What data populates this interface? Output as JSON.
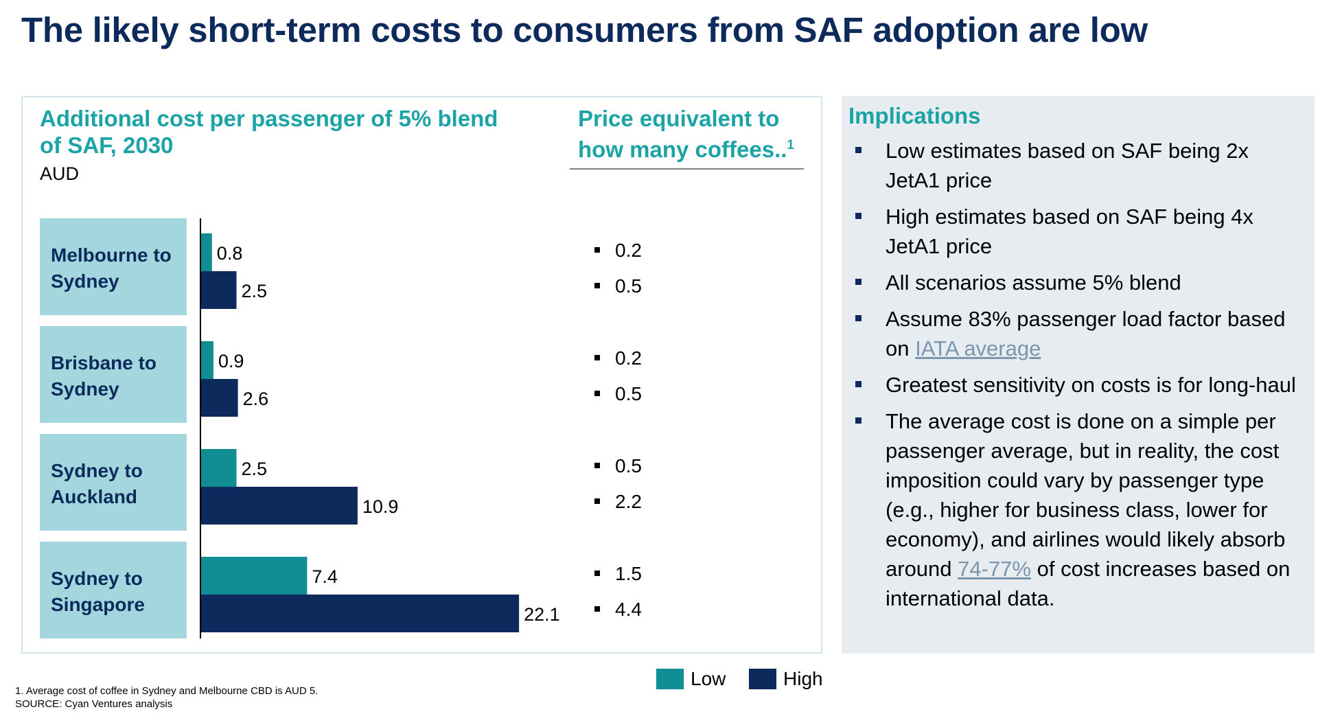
{
  "title": "The likely short-term costs to consumers from SAF adoption are low",
  "chart_data": {
    "type": "bar",
    "orientation": "horizontal",
    "title": "Additional cost per passenger of 5% blend of SAF, 2030",
    "unit": "AUD",
    "categories": [
      "Melbourne to Sydney",
      "Brisbane to Sydney",
      "Sydney to Auckland",
      "Sydney to Singapore"
    ],
    "series": [
      {
        "name": "Low",
        "color": "#108e93",
        "values": [
          0.8,
          0.9,
          2.5,
          7.4
        ]
      },
      {
        "name": "High",
        "color": "#0d2a5c",
        "values": [
          2.5,
          2.6,
          10.9,
          22.1
        ]
      }
    ],
    "value_labels": {
      "Low": [
        "0.8",
        "0.9",
        "2.5",
        "7.4"
      ],
      "High": [
        "2.5",
        "2.6",
        "10.9",
        "22.1"
      ]
    },
    "legend_position": "bottom-right",
    "grid": false
  },
  "chart": {
    "heading": "Additional cost per passenger of 5% blend of SAF, 2030",
    "unit": "AUD"
  },
  "coffee": {
    "heading": "Price equivalent to how many coffees..",
    "heading_sup": "1",
    "values": [
      "0.2",
      "0.5",
      "0.2",
      "0.5",
      "0.5",
      "2.2",
      "1.5",
      "4.4"
    ]
  },
  "legend": {
    "low": "Low",
    "high": "High"
  },
  "colors": {
    "low": "#108e93",
    "high": "#0d2a5c",
    "category_box": "#a3d6dd",
    "accent_text": "#1ca3a5",
    "title": "#0d2a5c",
    "panel_bg": "#e6ecef",
    "link": "#7a95ad"
  },
  "implications": {
    "heading": "Implications",
    "items": [
      {
        "text": "Low estimates based on SAF being 2x JetA1 price"
      },
      {
        "text": "High estimates based on SAF being 4x JetA1 price"
      },
      {
        "text": "All scenarios assume 5% blend"
      },
      {
        "before": "Assume 83% passenger load factor based on ",
        "link": "IATA average",
        "after": ""
      },
      {
        "text": "Greatest sensitivity on costs is for long-haul"
      },
      {
        "before": "The average cost is done on a simple per passenger average, but in reality, the cost imposition could vary by passenger type (e.g., higher for business class, lower for economy), and airlines would likely absorb around ",
        "link": "74-77%",
        "after": " of cost increases based on international data."
      }
    ]
  },
  "footnote": {
    "line1": "1. Average cost of coffee in Sydney and Melbourne CBD is AUD 5.",
    "line2": "SOURCE: Cyan Ventures analysis"
  }
}
